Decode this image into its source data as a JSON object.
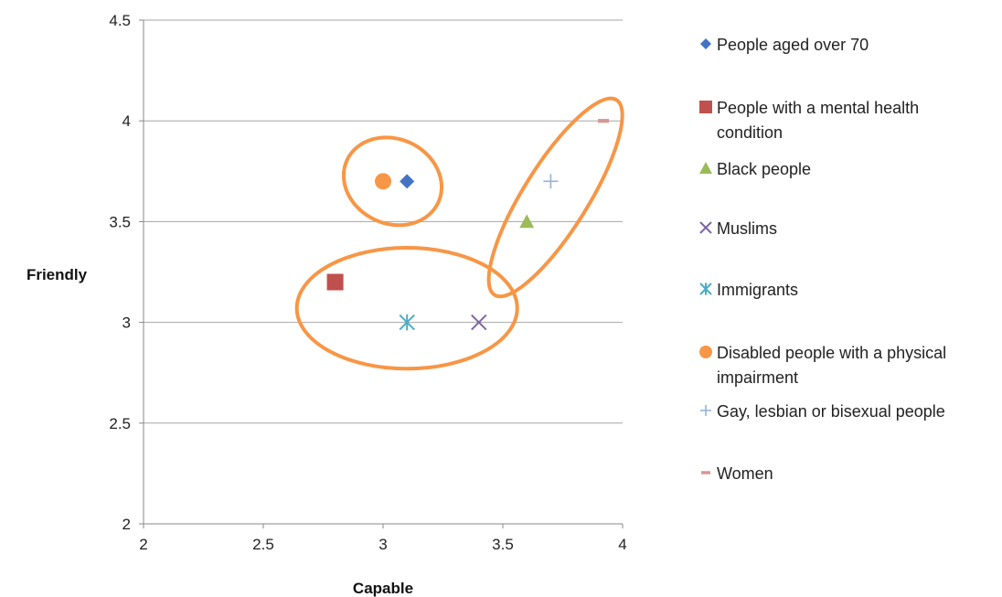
{
  "chart_data": {
    "type": "scatter",
    "xlabel": "Capable",
    "ylabel": "Friendly",
    "xlim": [
      2,
      4
    ],
    "ylim": [
      2,
      4.5
    ],
    "x_ticks": [
      "2",
      "2.5",
      "3",
      "3.5",
      "4"
    ],
    "y_ticks": [
      "2",
      "2.5",
      "3",
      "3.5",
      "4",
      "4.5"
    ],
    "grid": "horizontal",
    "legend_position": "right",
    "series": [
      {
        "name": "People aged over 70",
        "legend_lines": [
          "People aged over 70"
        ],
        "marker": "diamond",
        "color": "#4472c4",
        "x": 3.1,
        "y": 3.7
      },
      {
        "name": "People with a mental health condition",
        "legend_lines": [
          "People with a mental health",
          "condition"
        ],
        "marker": "square",
        "color": "#c0504d",
        "x": 2.8,
        "y": 3.2
      },
      {
        "name": "Black people",
        "legend_lines": [
          " Black people"
        ],
        "marker": "triangle",
        "color": "#9bbb59",
        "x": 3.6,
        "y": 3.5
      },
      {
        "name": "Muslims",
        "legend_lines": [
          "Muslims"
        ],
        "marker": "x",
        "color": "#8064a2",
        "x": 3.4,
        "y": 3.0
      },
      {
        "name": "Immigrants",
        "legend_lines": [
          "Immigrants"
        ],
        "marker": "asterisk",
        "color": "#4bacc6",
        "x": 3.1,
        "y": 3.0
      },
      {
        "name": "Disabled people with a physical impairment",
        "legend_lines": [
          "Disabled people with a physical",
          "impairment"
        ],
        "marker": "circle",
        "color": "#f79646",
        "x": 3.0,
        "y": 3.7
      },
      {
        "name": "Gay, lesbian or bisexual people",
        "legend_lines": [
          "Gay, lesbian or bisexual people"
        ],
        "marker": "plus",
        "color": "#95b3d7",
        "x": 3.7,
        "y": 3.7
      },
      {
        "name": "Women",
        "legend_lines": [
          "Women"
        ],
        "marker": "dash",
        "color": "#d99694",
        "x": 3.92,
        "y": 4.0
      }
    ],
    "annotations": [
      {
        "shape": "ellipse",
        "color": "#f79646",
        "cx": 3.04,
        "cy": 3.7,
        "rx": 0.21,
        "ry": 0.21,
        "angle": 25
      },
      {
        "shape": "ellipse",
        "color": "#f79646",
        "cx": 3.72,
        "cy": 3.62,
        "rx": 0.48,
        "ry": 0.16,
        "angle": -58
      },
      {
        "shape": "ellipse",
        "color": "#f79646",
        "cx": 3.1,
        "cy": 3.07,
        "rx": 0.46,
        "ry": 0.3,
        "angle": 0
      }
    ]
  }
}
